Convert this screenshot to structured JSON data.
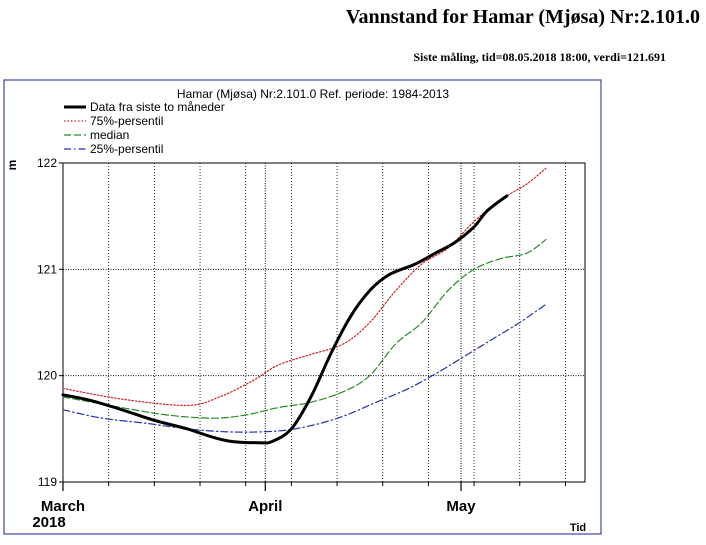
{
  "page": {
    "title": "Vannstand for Hamar (Mjøsa) Nr:2.101.0",
    "subtitle": "Siste måling, tid=08.05.2018 18:00, verdi=121.691"
  },
  "colors": {
    "data": "#000000",
    "p75": "#cc2222",
    "median": "#2a8a2a",
    "p25": "#2233aa",
    "frame": "#3a4aa8"
  },
  "chart_data": {
    "type": "line",
    "title": "Hamar (Mjøsa) Nr:2.101.0 Ref. periode: 1984-2013",
    "xlabel": "Tid",
    "ylabel": "m",
    "x_range": [
      "2018-03-01",
      "2018-05-20"
    ],
    "ylim": [
      119,
      122
    ],
    "y_ticks": [
      119,
      120,
      121,
      122
    ],
    "x_major_ticks": [
      {
        "date": "2018-03-01",
        "label": "March",
        "sublabel": "2018"
      },
      {
        "date": "2018-04-01",
        "label": "April",
        "sublabel": ""
      },
      {
        "date": "2018-05-01",
        "label": "May",
        "sublabel": ""
      }
    ],
    "grid": true,
    "legend_position": "top-left",
    "series": [
      {
        "name": "Data fra siste to måneder",
        "key": "data",
        "style": "solid",
        "points": [
          [
            "2018-03-01",
            119.82
          ],
          [
            "2018-03-05",
            119.77
          ],
          [
            "2018-03-10",
            119.68
          ],
          [
            "2018-03-15",
            119.58
          ],
          [
            "2018-03-20",
            119.5
          ],
          [
            "2018-03-24",
            119.42
          ],
          [
            "2018-03-27",
            119.38
          ],
          [
            "2018-03-31",
            119.37
          ],
          [
            "2018-04-02",
            119.38
          ],
          [
            "2018-04-05",
            119.5
          ],
          [
            "2018-04-08",
            119.8
          ],
          [
            "2018-04-11",
            120.2
          ],
          [
            "2018-04-14",
            120.55
          ],
          [
            "2018-04-17",
            120.8
          ],
          [
            "2018-04-20",
            120.95
          ],
          [
            "2018-04-24",
            121.05
          ],
          [
            "2018-04-27",
            121.15
          ],
          [
            "2018-04-30",
            121.25
          ],
          [
            "2018-05-03",
            121.4
          ],
          [
            "2018-05-05",
            121.55
          ],
          [
            "2018-05-08",
            121.69
          ]
        ]
      },
      {
        "name": "75%-persentil",
        "key": "p75",
        "style": "dotted",
        "points": [
          [
            "2018-03-01",
            119.88
          ],
          [
            "2018-03-10",
            119.78
          ],
          [
            "2018-03-20",
            119.72
          ],
          [
            "2018-03-25",
            119.8
          ],
          [
            "2018-03-30",
            119.95
          ],
          [
            "2018-04-03",
            120.1
          ],
          [
            "2018-04-08",
            120.2
          ],
          [
            "2018-04-13",
            120.3
          ],
          [
            "2018-04-17",
            120.5
          ],
          [
            "2018-04-21",
            120.8
          ],
          [
            "2018-04-25",
            121.05
          ],
          [
            "2018-04-29",
            121.2
          ],
          [
            "2018-05-03",
            121.45
          ],
          [
            "2018-05-07",
            121.65
          ],
          [
            "2018-05-11",
            121.8
          ],
          [
            "2018-05-14",
            121.95
          ]
        ]
      },
      {
        "name": "median",
        "key": "median",
        "style": "dashed",
        "points": [
          [
            "2018-03-01",
            119.8
          ],
          [
            "2018-03-10",
            119.7
          ],
          [
            "2018-03-17",
            119.63
          ],
          [
            "2018-03-24",
            119.6
          ],
          [
            "2018-03-29",
            119.63
          ],
          [
            "2018-04-03",
            119.7
          ],
          [
            "2018-04-08",
            119.75
          ],
          [
            "2018-04-13",
            119.85
          ],
          [
            "2018-04-17",
            120.0
          ],
          [
            "2018-04-21",
            120.3
          ],
          [
            "2018-04-25",
            120.5
          ],
          [
            "2018-04-29",
            120.8
          ],
          [
            "2018-05-03",
            121.0
          ],
          [
            "2018-05-07",
            121.1
          ],
          [
            "2018-05-11",
            121.15
          ],
          [
            "2018-05-14",
            121.28
          ]
        ]
      },
      {
        "name": "25%-persentil",
        "key": "p25",
        "style": "dashdot",
        "points": [
          [
            "2018-03-01",
            119.68
          ],
          [
            "2018-03-07",
            119.6
          ],
          [
            "2018-03-14",
            119.55
          ],
          [
            "2018-03-20",
            119.5
          ],
          [
            "2018-03-27",
            119.47
          ],
          [
            "2018-04-03",
            119.48
          ],
          [
            "2018-04-08",
            119.53
          ],
          [
            "2018-04-13",
            119.62
          ],
          [
            "2018-04-18",
            119.75
          ],
          [
            "2018-04-23",
            119.88
          ],
          [
            "2018-04-28",
            120.05
          ],
          [
            "2018-05-02",
            120.2
          ],
          [
            "2018-05-06",
            120.35
          ],
          [
            "2018-05-10",
            120.5
          ],
          [
            "2018-05-14",
            120.67
          ]
        ]
      }
    ]
  }
}
